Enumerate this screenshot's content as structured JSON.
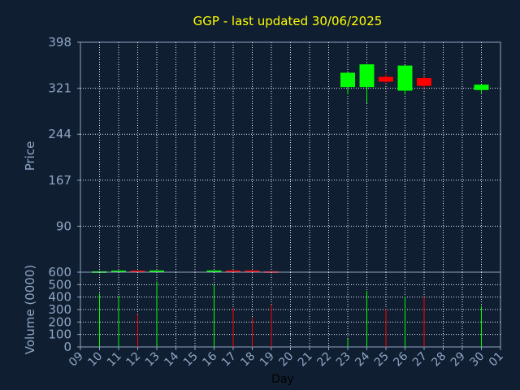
{
  "chart_data": {
    "type": "candlestick",
    "title": "GGP - last updated 30/06/2025",
    "xlabel": "Day",
    "price_panel": {
      "ylabel": "Price",
      "ylim": [
        13,
        398
      ],
      "yticks": [
        90,
        167,
        244,
        321,
        398
      ],
      "grid": true
    },
    "volume_panel": {
      "ylabel": "Volume (0000)",
      "ylim": [
        0,
        600
      ],
      "yticks": [
        0,
        100,
        200,
        300,
        400,
        500,
        600
      ],
      "grid": true
    },
    "x_tick_labels": [
      "09",
      "10",
      "11",
      "12",
      "13",
      "14",
      "15",
      "16",
      "17",
      "18",
      "19",
      "20",
      "21",
      "22",
      "23",
      "24",
      "25",
      "26",
      "27",
      "28",
      "29",
      "30",
      "01"
    ],
    "candles": [
      {
        "day": "10",
        "open": 13.5,
        "high": 15.0,
        "low": 13.0,
        "close": 14.5
      },
      {
        "day": "11",
        "open": 13.8,
        "high": 16.0,
        "low": 13.2,
        "close": 15.6
      },
      {
        "day": "12",
        "open": 15.6,
        "high": 16.2,
        "low": 13.2,
        "close": 13.8
      },
      {
        "day": "13",
        "open": 14.0,
        "high": 16.0,
        "low": 13.2,
        "close": 15.8
      },
      {
        "day": "16",
        "open": 14.0,
        "high": 16.0,
        "low": 13.2,
        "close": 15.8
      },
      {
        "day": "17",
        "open": 15.8,
        "high": 16.0,
        "low": 13.5,
        "close": 13.8
      },
      {
        "day": "18",
        "open": 15.8,
        "high": 16.0,
        "low": 13.5,
        "close": 13.8
      },
      {
        "day": "19",
        "open": 14.5,
        "high": 15.0,
        "low": 13.0,
        "close": 13.5
      },
      {
        "day": "23",
        "open": 323,
        "high": 348,
        "low": 311,
        "close": 347
      },
      {
        "day": "24",
        "open": 323,
        "high": 362,
        "low": 296,
        "close": 361
      },
      {
        "day": "25",
        "open": 340,
        "high": 345,
        "low": 328,
        "close": 332
      },
      {
        "day": "26",
        "open": 317,
        "high": 360,
        "low": 310,
        "close": 359
      },
      {
        "day": "27",
        "open": 338,
        "high": 340,
        "low": 320,
        "close": 325
      },
      {
        "day": "30",
        "open": 318,
        "high": 328,
        "low": 313,
        "close": 327
      }
    ],
    "volume": [
      {
        "day": "10",
        "value": 430,
        "direction": "up"
      },
      {
        "day": "11",
        "value": 410,
        "direction": "up"
      },
      {
        "day": "12",
        "value": 260,
        "direction": "down"
      },
      {
        "day": "13",
        "value": 525,
        "direction": "up"
      },
      {
        "day": "16",
        "value": 500,
        "direction": "up"
      },
      {
        "day": "17",
        "value": 315,
        "direction": "down"
      },
      {
        "day": "18",
        "value": 235,
        "direction": "down"
      },
      {
        "day": "19",
        "value": 340,
        "direction": "down"
      },
      {
        "day": "23",
        "value": 65,
        "direction": "up"
      },
      {
        "day": "24",
        "value": 450,
        "direction": "up"
      },
      {
        "day": "25",
        "value": 305,
        "direction": "down"
      },
      {
        "day": "26",
        "value": 400,
        "direction": "up"
      },
      {
        "day": "27",
        "value": 400,
        "direction": "down"
      },
      {
        "day": "30",
        "value": 330,
        "direction": "up"
      }
    ],
    "colors": {
      "background": "#101e31",
      "up": "#00ff00",
      "down": "#ff0000",
      "grid": "#e8eef7",
      "axis": "#8fa6c4",
      "tick_text": "#8fa6c4",
      "title_text": "#ffff00",
      "xlabel_text": "#000000"
    }
  }
}
